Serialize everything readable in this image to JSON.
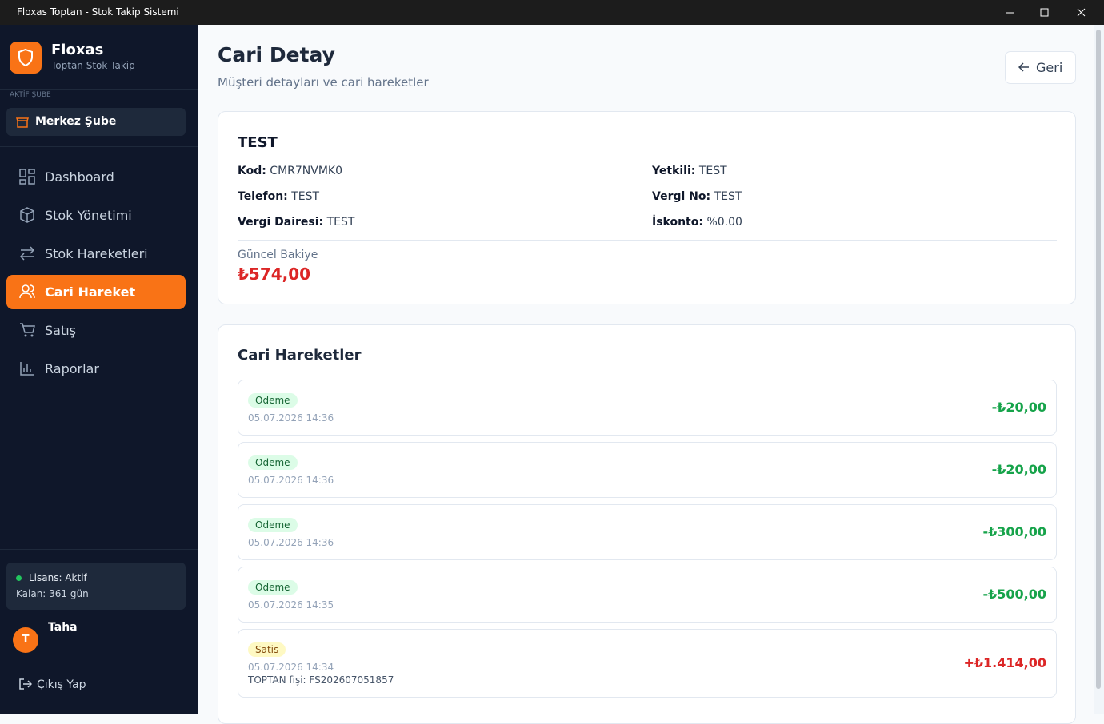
{
  "window": {
    "title": "Floxas Toptan - Stok Takip Sistemi"
  },
  "sidebar": {
    "brand": "Floxas",
    "tagline": "Toptan Stok Takip",
    "branch_label": "AKTİF ŞUBE",
    "branch": "Merkez Şube",
    "nav": [
      "Dashboard",
      "Stok Yönetimi",
      "Stok Hareketleri",
      "Cari Hareket",
      "Satış",
      "Raporlar"
    ],
    "license": {
      "status": "Lisans: Aktif",
      "remaining": "Kalan: 361 gün"
    },
    "user": {
      "initial": "T",
      "name": "Taha"
    },
    "logout": "Çıkış Yap"
  },
  "header": {
    "title": "Cari Detay",
    "subtitle": "Müşteri detayları ve cari hareketler",
    "back": "Geri"
  },
  "customer": {
    "name": "TEST",
    "fields": [
      {
        "label": "Kod:",
        "value": "CMR7NVMK0"
      },
      {
        "label": "Yetkili:",
        "value": "TEST"
      },
      {
        "label": "Telefon:",
        "value": "TEST"
      },
      {
        "label": "Vergi No:",
        "value": "TEST"
      },
      {
        "label": "Vergi Dairesi:",
        "value": "TEST"
      },
      {
        "label": "İskonto:",
        "value": "%0.00"
      }
    ],
    "balance_label": "Güncel Bakiye",
    "balance": "₺574,00"
  },
  "movements": {
    "title": "Cari Hareketler",
    "items": [
      {
        "type": "Odeme",
        "date": "05.07.2026 14:36",
        "amount": "-₺20,00"
      },
      {
        "type": "Odeme",
        "date": "05.07.2026 14:36",
        "amount": "-₺20,00"
      },
      {
        "type": "Odeme",
        "date": "05.07.2026 14:36",
        "amount": "-₺300,00"
      },
      {
        "type": "Odeme",
        "date": "05.07.2026 14:35",
        "amount": "-₺500,00"
      },
      {
        "type": "Satis",
        "date": "05.07.2026 14:34",
        "amount": "+₺1.414,00",
        "note": "TOPTAN fişi: FS202607051857"
      }
    ]
  }
}
